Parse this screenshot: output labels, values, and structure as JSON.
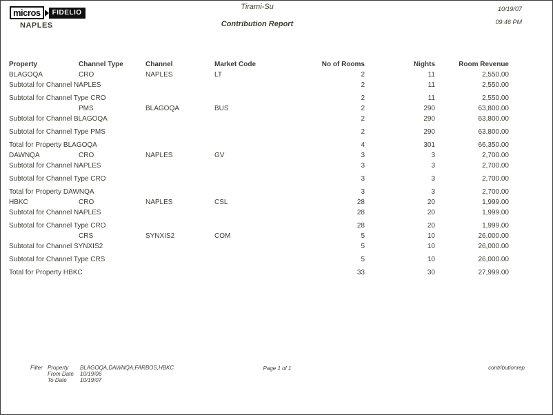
{
  "page": {
    "logo": {
      "micros": "micros",
      "fidelio": "FIDELIO"
    },
    "property_name": "NAPLES",
    "system_title": "Tirami-Su",
    "report_title": "Contribution Report",
    "date": "10/19/07",
    "time": "09:46 PM"
  },
  "table": {
    "columns": [
      "Property",
      "Channel Type",
      "Channel",
      "Market Code",
      "No of Rooms",
      "Nights",
      "Room Revenue"
    ],
    "rows": [
      {
        "kind": "detail",
        "property": "BLAGOQA",
        "channel_type": "CRO",
        "channel": "NAPLES",
        "market_code": "LT",
        "rooms": "2",
        "nights": "11",
        "revenue": "2,550.00"
      },
      {
        "kind": "sub-channel",
        "label": "Subtotal for Channel NAPLES",
        "rooms": "2",
        "nights": "11",
        "revenue": "2,550.00"
      },
      {
        "kind": "sub-type",
        "label": "Subtotal for Channel Type CRO",
        "rooms": "2",
        "nights": "11",
        "revenue": "2,550.00"
      },
      {
        "kind": "detail",
        "property": "",
        "channel_type": "PMS",
        "channel": "BLAGOQA",
        "market_code": "BUS",
        "rooms": "2",
        "nights": "290",
        "revenue": "63,800.00"
      },
      {
        "kind": "sub-channel",
        "label": "Subtotal for Channel BLAGOQA",
        "rooms": "2",
        "nights": "290",
        "revenue": "63,800.00"
      },
      {
        "kind": "sub-type",
        "label": "Subtotal for Channel Type PMS",
        "rooms": "2",
        "nights": "290",
        "revenue": "63,800.00"
      },
      {
        "kind": "total",
        "label": "Total for Property BLAGOQA",
        "rooms": "4",
        "nights": "301",
        "revenue": "66,350.00"
      },
      {
        "kind": "detail",
        "property": "DAWNQA",
        "channel_type": "CRO",
        "channel": "NAPLES",
        "market_code": "GV",
        "rooms": "3",
        "nights": "3",
        "revenue": "2,700.00"
      },
      {
        "kind": "sub-channel",
        "label": "Subtotal for Channel NAPLES",
        "rooms": "3",
        "nights": "3",
        "revenue": "2,700.00"
      },
      {
        "kind": "sub-type",
        "label": "Subtotal for Channel Type CRO",
        "rooms": "3",
        "nights": "3",
        "revenue": "2,700.00"
      },
      {
        "kind": "total",
        "label": "Total for Property DAWNQA",
        "rooms": "3",
        "nights": "3",
        "revenue": "2,700.00"
      },
      {
        "kind": "detail",
        "property": "HBKC",
        "channel_type": "CRO",
        "channel": "NAPLES",
        "market_code": "CSL",
        "rooms": "28",
        "nights": "20",
        "revenue": "1,999.00"
      },
      {
        "kind": "sub-channel",
        "label": "Subtotal for Channel NAPLES",
        "rooms": "28",
        "nights": "20",
        "revenue": "1,999.00"
      },
      {
        "kind": "sub-type",
        "label": "Subtotal for Channel Type CRO",
        "rooms": "28",
        "nights": "20",
        "revenue": "1,999.00"
      },
      {
        "kind": "detail",
        "property": "",
        "channel_type": "CRS",
        "channel": "SYNXIS2",
        "market_code": "COM",
        "rooms": "5",
        "nights": "10",
        "revenue": "26,000.00"
      },
      {
        "kind": "sub-channel",
        "label": "Subtotal for Channel SYNXIS2",
        "rooms": "5",
        "nights": "10",
        "revenue": "26,000.00"
      },
      {
        "kind": "sub-type",
        "label": "Subtotal for Channel Type CRS",
        "rooms": "5",
        "nights": "10",
        "revenue": "26,000.00"
      },
      {
        "kind": "total",
        "label": "Total for Property HBKC",
        "rooms": "33",
        "nights": "30",
        "revenue": "27,999.00"
      }
    ]
  },
  "footer": {
    "filter_label": "Filter",
    "filters": [
      {
        "name": "Property",
        "value": "BLAGOQA,DAWNQA,FARBOS,HBKC"
      },
      {
        "name": "From Date",
        "value": "10/19/06"
      },
      {
        "name": "To Date",
        "value": "10/19/07"
      }
    ],
    "page_info": "Page 1 of 1",
    "report_id": "contributionrep"
  }
}
